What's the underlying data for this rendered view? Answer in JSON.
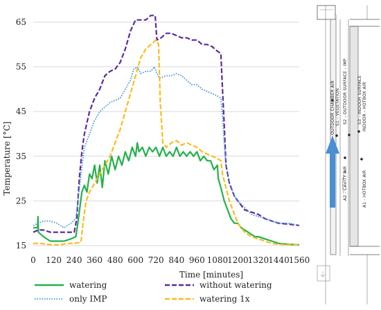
{
  "chart_data": {
    "type": "line",
    "xlabel": "Time [minutes]",
    "ylabel": "Temperature [°C]",
    "xlim": [
      0,
      1560
    ],
    "ylim": [
      15,
      65
    ],
    "xticks": [
      0,
      120,
      240,
      360,
      480,
      600,
      720,
      840,
      960,
      1080,
      1200,
      1320,
      1440,
      1560
    ],
    "yticks": [
      15,
      25,
      35,
      45,
      55,
      65
    ],
    "grid": "horizontal",
    "legend_position": "bottom",
    "series": [
      {
        "name": "watering",
        "color": "#22b14c",
        "style": "solid",
        "points": [
          [
            0,
            19
          ],
          [
            25,
            19
          ],
          [
            28,
            21.5
          ],
          [
            30,
            18
          ],
          [
            60,
            17
          ],
          [
            100,
            16
          ],
          [
            180,
            16
          ],
          [
            220,
            16.5
          ],
          [
            250,
            17
          ],
          [
            265,
            21
          ],
          [
            285,
            27
          ],
          [
            300,
            28.5
          ],
          [
            315,
            27
          ],
          [
            330,
            31
          ],
          [
            345,
            30
          ],
          [
            360,
            33
          ],
          [
            375,
            29
          ],
          [
            390,
            33
          ],
          [
            405,
            28
          ],
          [
            420,
            34
          ],
          [
            440,
            31
          ],
          [
            460,
            35
          ],
          [
            480,
            32
          ],
          [
            500,
            35
          ],
          [
            520,
            33
          ],
          [
            540,
            36
          ],
          [
            560,
            34
          ],
          [
            580,
            37
          ],
          [
            600,
            35
          ],
          [
            610,
            38
          ],
          [
            620,
            36
          ],
          [
            640,
            37
          ],
          [
            660,
            35
          ],
          [
            680,
            37
          ],
          [
            700,
            36
          ],
          [
            720,
            37
          ],
          [
            740,
            35
          ],
          [
            760,
            37
          ],
          [
            780,
            35
          ],
          [
            800,
            36
          ],
          [
            820,
            35
          ],
          [
            840,
            37
          ],
          [
            860,
            35
          ],
          [
            880,
            36
          ],
          [
            900,
            35
          ],
          [
            920,
            36
          ],
          [
            940,
            35
          ],
          [
            960,
            36
          ],
          [
            980,
            34
          ],
          [
            1000,
            35
          ],
          [
            1020,
            34
          ],
          [
            1040,
            34
          ],
          [
            1060,
            32
          ],
          [
            1080,
            33
          ],
          [
            1085,
            30
          ],
          [
            1100,
            28
          ],
          [
            1120,
            25
          ],
          [
            1140,
            23
          ],
          [
            1160,
            21
          ],
          [
            1180,
            20
          ],
          [
            1200,
            20
          ],
          [
            1220,
            19
          ],
          [
            1240,
            18.5
          ],
          [
            1260,
            18
          ],
          [
            1280,
            17.5
          ],
          [
            1300,
            17
          ],
          [
            1320,
            17
          ],
          [
            1360,
            16.5
          ],
          [
            1400,
            16
          ],
          [
            1440,
            15.5
          ],
          [
            1500,
            15.3
          ],
          [
            1560,
            15.2
          ]
        ]
      },
      {
        "name": "without watering",
        "color": "#5b2a9e",
        "style": "dash",
        "points": [
          [
            0,
            18
          ],
          [
            30,
            18.5
          ],
          [
            60,
            18.5
          ],
          [
            100,
            18
          ],
          [
            150,
            18
          ],
          [
            200,
            18
          ],
          [
            240,
            18
          ],
          [
            255,
            21
          ],
          [
            270,
            30
          ],
          [
            285,
            36
          ],
          [
            300,
            40
          ],
          [
            330,
            45
          ],
          [
            360,
            48
          ],
          [
            390,
            50
          ],
          [
            420,
            53
          ],
          [
            450,
            54
          ],
          [
            480,
            54.5
          ],
          [
            510,
            56
          ],
          [
            540,
            59
          ],
          [
            570,
            63
          ],
          [
            600,
            65.5
          ],
          [
            630,
            65.5
          ],
          [
            660,
            65.5
          ],
          [
            690,
            66.5
          ],
          [
            715,
            66.5
          ],
          [
            725,
            61
          ],
          [
            750,
            61.5
          ],
          [
            780,
            62.5
          ],
          [
            810,
            62.5
          ],
          [
            840,
            62
          ],
          [
            870,
            61.5
          ],
          [
            900,
            61.5
          ],
          [
            930,
            61
          ],
          [
            960,
            61
          ],
          [
            990,
            60
          ],
          [
            1020,
            60
          ],
          [
            1050,
            59.5
          ],
          [
            1080,
            58.5
          ],
          [
            1100,
            58
          ],
          [
            1110,
            50
          ],
          [
            1120,
            42
          ],
          [
            1130,
            33
          ],
          [
            1150,
            29
          ],
          [
            1180,
            26
          ],
          [
            1200,
            25
          ],
          [
            1240,
            23
          ],
          [
            1280,
            22.5
          ],
          [
            1320,
            22
          ],
          [
            1360,
            21
          ],
          [
            1400,
            20.5
          ],
          [
            1440,
            20
          ],
          [
            1500,
            19.8
          ],
          [
            1560,
            19.5
          ]
        ]
      },
      {
        "name": "only IMP",
        "color": "#3a8fd6",
        "style": "dot",
        "points": [
          [
            0,
            19.5
          ],
          [
            30,
            20
          ],
          [
            60,
            20.5
          ],
          [
            100,
            20.5
          ],
          [
            140,
            20
          ],
          [
            180,
            19
          ],
          [
            220,
            20
          ],
          [
            250,
            21
          ],
          [
            265,
            26
          ],
          [
            280,
            31
          ],
          [
            300,
            37
          ],
          [
            330,
            40
          ],
          [
            360,
            43
          ],
          [
            390,
            45
          ],
          [
            420,
            46
          ],
          [
            450,
            47
          ],
          [
            480,
            47.5
          ],
          [
            510,
            48
          ],
          [
            540,
            50
          ],
          [
            570,
            52
          ],
          [
            590,
            54.5
          ],
          [
            610,
            55
          ],
          [
            630,
            53.5
          ],
          [
            660,
            54
          ],
          [
            690,
            54
          ],
          [
            710,
            55
          ],
          [
            720,
            54
          ],
          [
            740,
            52.5
          ],
          [
            780,
            53
          ],
          [
            810,
            53
          ],
          [
            840,
            53.5
          ],
          [
            870,
            53
          ],
          [
            900,
            52
          ],
          [
            930,
            51
          ],
          [
            960,
            51
          ],
          [
            990,
            50
          ],
          [
            1020,
            49.5
          ],
          [
            1050,
            49
          ],
          [
            1080,
            48.5
          ],
          [
            1100,
            48
          ],
          [
            1110,
            44
          ],
          [
            1120,
            38
          ],
          [
            1130,
            33
          ],
          [
            1150,
            29
          ],
          [
            1180,
            26
          ],
          [
            1200,
            25
          ],
          [
            1240,
            23.5
          ],
          [
            1280,
            22
          ],
          [
            1320,
            21.5
          ],
          [
            1360,
            21
          ],
          [
            1400,
            20.5
          ],
          [
            1440,
            20
          ],
          [
            1500,
            20
          ],
          [
            1560,
            19.5
          ]
        ]
      },
      {
        "name": "watering 1x",
        "color": "#fbbc19",
        "style": "dash",
        "points": [
          [
            0,
            15.5
          ],
          [
            40,
            15.5
          ],
          [
            80,
            15.3
          ],
          [
            120,
            15.2
          ],
          [
            160,
            15.2
          ],
          [
            200,
            15.5
          ],
          [
            240,
            15.5
          ],
          [
            280,
            15.8
          ],
          [
            295,
            21
          ],
          [
            310,
            25
          ],
          [
            330,
            27
          ],
          [
            360,
            29
          ],
          [
            390,
            31
          ],
          [
            420,
            33
          ],
          [
            450,
            35
          ],
          [
            480,
            38
          ],
          [
            510,
            41
          ],
          [
            540,
            45
          ],
          [
            570,
            49
          ],
          [
            600,
            53
          ],
          [
            630,
            57
          ],
          [
            660,
            59
          ],
          [
            690,
            60
          ],
          [
            720,
            61
          ],
          [
            735,
            60
          ],
          [
            745,
            47
          ],
          [
            760,
            38
          ],
          [
            780,
            37
          ],
          [
            810,
            38
          ],
          [
            840,
            38.5
          ],
          [
            870,
            37.5
          ],
          [
            900,
            38
          ],
          [
            930,
            37.5
          ],
          [
            960,
            37
          ],
          [
            990,
            36
          ],
          [
            1020,
            35.5
          ],
          [
            1050,
            35
          ],
          [
            1080,
            34.5
          ],
          [
            1100,
            34
          ],
          [
            1110,
            31
          ],
          [
            1130,
            28
          ],
          [
            1150,
            25
          ],
          [
            1180,
            22
          ],
          [
            1200,
            20
          ],
          [
            1240,
            18
          ],
          [
            1280,
            17
          ],
          [
            1320,
            16.5
          ],
          [
            1360,
            16
          ],
          [
            1400,
            15.5
          ],
          [
            1440,
            15.3
          ],
          [
            1500,
            15.2
          ],
          [
            1560,
            15.2
          ]
        ]
      }
    ]
  },
  "diagram": {
    "labels": [
      "OUTDOOR CHAMBER AIR",
      "S1 - VEGETATION",
      "A2 - CAVITY AIR",
      "S2 - OUTDOOR SURFACE - IMP",
      "S3 - INDOOR SURFACE",
      "INDOOR - HOTBOX AIR",
      "A1 - HOTBOX AIR"
    ],
    "arrow_color": "#4a8fd4"
  }
}
